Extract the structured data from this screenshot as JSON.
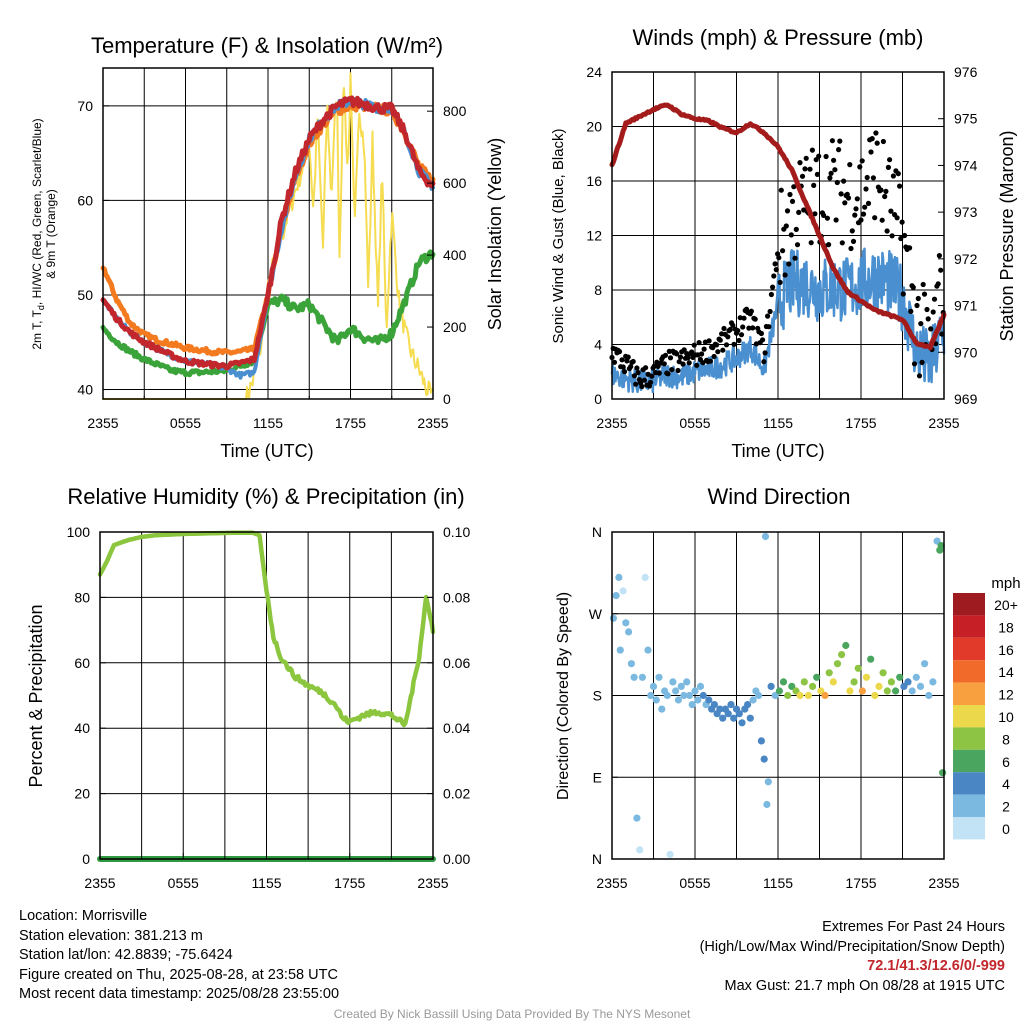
{
  "colors": {
    "red": "#c1272d",
    "blue": "#4a90d0",
    "green": "#3aa33a",
    "orange": "#f47a20",
    "yellow": "#f5dc50",
    "black": "#000000",
    "maroon": "#a31b1b",
    "rh_green": "#8cc63f",
    "precip_green": "#2f9a3f"
  },
  "chart_data": [
    {
      "type": "line",
      "title": "Temperature (F) & Insolation (W/m²)",
      "xlabel": "Time (UTC)",
      "ylabel": "2m T, Td, HI/WC (Red, Green, Scarlet/Blue) & 9m T (Orange)",
      "ylabel_line1": "2m T, T",
      "ylabel_sub": "d",
      "ylabel_line1_rest": ", HI/WC (Red, Green, Scarlet/Blue)",
      "ylabel_line2": "& 9m T (Orange)",
      "y2label": "Solar Insolation (Yellow)",
      "xticks": [
        "2355",
        "0555",
        "1155",
        "1755",
        "2355"
      ],
      "ylim": [
        39,
        74
      ],
      "yticks": [
        40,
        50,
        60,
        70
      ],
      "y2lim": [
        0,
        920
      ],
      "y2ticks": [
        0,
        200,
        400,
        600,
        800
      ],
      "grid": true,
      "x": [
        0,
        1,
        2,
        3,
        4,
        5,
        6,
        7,
        8,
        9,
        10,
        11,
        12,
        13,
        14,
        15,
        16,
        17,
        18,
        19,
        20,
        21,
        22,
        23,
        24
      ],
      "series": [
        {
          "name": "2m T",
          "color": "red",
          "values": [
            49.5,
            47.5,
            46,
            45,
            44.3,
            43.6,
            43,
            42.8,
            42.6,
            42.5,
            42.8,
            43.2,
            50,
            58,
            63,
            66.5,
            68.5,
            70,
            70.5,
            70.2,
            69.8,
            69.7,
            67,
            63,
            61.5
          ]
        },
        {
          "name": "Td",
          "color": "green",
          "values": [
            46.5,
            45,
            44,
            43.2,
            42.6,
            42,
            41.8,
            41.8,
            41.9,
            42,
            42.5,
            43,
            49,
            49.5,
            48.5,
            49,
            47,
            45,
            46.5,
            45.5,
            45,
            46,
            49.5,
            53.5,
            54.5
          ]
        },
        {
          "name": "HI/WC",
          "color": "blue",
          "values": [
            49.5,
            47.5,
            46,
            45,
            44.3,
            43.6,
            43,
            42.8,
            42.6,
            42.2,
            41.5,
            41.8,
            50,
            57,
            62.5,
            66.5,
            68.5,
            70,
            70.5,
            70.2,
            69.8,
            69.7,
            67,
            63,
            61.5
          ]
        },
        {
          "name": "9m T",
          "color": "orange",
          "values": [
            53,
            49.5,
            47,
            45.8,
            45.2,
            44.8,
            44.4,
            44.2,
            44,
            43.9,
            44,
            44.3,
            50,
            57,
            62.5,
            66,
            68,
            69.5,
            70,
            70,
            69.7,
            69.5,
            67,
            63.5,
            62
          ]
        }
      ],
      "insolation": {
        "name": "Solar Insolation",
        "color": "yellow",
        "x": [
          0,
          10.4,
          11,
          11.5,
          12,
          12.5,
          13,
          13.5,
          14,
          14.5,
          15,
          15.3,
          15.6,
          16,
          16.3,
          16.6,
          17,
          17.2,
          17.5,
          17.8,
          18,
          18.3,
          18.6,
          19,
          19.3,
          19.6,
          20,
          20.3,
          20.6,
          21,
          21.5,
          22,
          22.5,
          23,
          23.5,
          24
        ],
        "values": [
          0,
          0,
          60,
          150,
          300,
          400,
          450,
          520,
          580,
          640,
          720,
          520,
          780,
          420,
          820,
          560,
          880,
          400,
          900,
          620,
          880,
          460,
          820,
          700,
          300,
          720,
          250,
          650,
          180,
          520,
          280,
          180,
          120,
          80,
          30,
          0
        ]
      }
    },
    {
      "type": "scatter",
      "title": "Winds (mph) & Pressure (mb)",
      "xlabel": "Time (UTC)",
      "ylabel": "Sonic Wind & Gust (Blue, Black)",
      "y2label": "Station Pressure (Maroon)",
      "xticks": [
        "2355",
        "0555",
        "1155",
        "1755",
        "2355"
      ],
      "ylim": [
        0,
        24
      ],
      "yticks": [
        0,
        4,
        8,
        12,
        16,
        20,
        24
      ],
      "y2lim": [
        969,
        976
      ],
      "y2ticks": [
        969,
        970,
        971,
        972,
        973,
        974,
        975,
        976
      ],
      "grid": true,
      "x": [
        0,
        1,
        2,
        3,
        4,
        5,
        6,
        7,
        8,
        9,
        10,
        11,
        12,
        13,
        14,
        15,
        16,
        17,
        18,
        19,
        20,
        21,
        22,
        23,
        24
      ],
      "series": [
        {
          "name": "Sonic Wind",
          "color": "blue",
          "values": [
            1.8,
            1.5,
            1.2,
            1.3,
            1.8,
            1.6,
            2,
            2.2,
            2.5,
            3,
            3.8,
            2.2,
            7,
            8.5,
            8.5,
            8,
            8.2,
            8,
            8.5,
            9,
            8.5,
            7.5,
            3.5,
            2.5,
            5
          ]
        },
        {
          "name": "Gust",
          "color": "black",
          "values": [
            3.5,
            2.5,
            1.5,
            1.8,
            2.6,
            2.8,
            3.2,
            3.6,
            4.2,
            5,
            6,
            3.5,
            11,
            13.5,
            14.5,
            15,
            15.5,
            15,
            15,
            17,
            14.5,
            12,
            5.5,
            3.5,
            9
          ]
        }
      ],
      "pressure": {
        "name": "Station Pressure",
        "color": "maroon",
        "values": [
          974,
          974.9,
          975.05,
          975.2,
          975.3,
          975.1,
          975,
          974.95,
          974.8,
          974.7,
          974.9,
          974.7,
          974.4,
          973.9,
          973.2,
          972.5,
          971.8,
          971.3,
          971.1,
          970.9,
          970.8,
          970.7,
          970.2,
          970.1,
          970.8
        ]
      }
    },
    {
      "type": "line",
      "title": "Relative Humidity (%) & Precipitation (in)",
      "ylabel": "Percent & Precipitation",
      "xticks": [
        "2355",
        "0555",
        "1155",
        "1755",
        "2355"
      ],
      "ylim": [
        0,
        100
      ],
      "yticks": [
        0,
        20,
        40,
        60,
        80,
        100
      ],
      "y2lim": [
        0,
        0.1
      ],
      "y2ticks": [
        "0.00",
        "0.02",
        "0.04",
        "0.06",
        "0.08",
        "0.10"
      ],
      "grid": true,
      "x": [
        0,
        0.5,
        1,
        2,
        3,
        4,
        5,
        6,
        7,
        8,
        9,
        10,
        11,
        11.5,
        12,
        12.5,
        13,
        14,
        15,
        16,
        17,
        17.5,
        18,
        19,
        20,
        21,
        22,
        23,
        23.5,
        24
      ],
      "series": [
        {
          "name": "Relative Humidity",
          "color": "rh_green",
          "values": [
            87,
            91,
            96,
            97.5,
            98.5,
            99,
            99.2,
            99.4,
            99.5,
            99.6,
            99.7,
            99.8,
            99.8,
            99,
            82,
            68,
            62,
            56,
            53,
            51,
            47,
            43,
            42,
            44,
            45,
            44,
            41,
            62,
            80,
            70
          ]
        },
        {
          "name": "Precipitation",
          "color": "precip_green",
          "values": [
            0,
            0,
            0,
            0,
            0,
            0,
            0,
            0,
            0,
            0,
            0,
            0,
            0,
            0,
            0,
            0,
            0,
            0,
            0,
            0,
            0,
            0,
            0,
            0,
            0,
            0,
            0,
            0,
            0,
            0
          ]
        }
      ]
    },
    {
      "type": "scatter",
      "title": "Wind Direction",
      "ylabel": "Direction (Colored By Speed)",
      "xticks": [
        "2355",
        "0555",
        "1155",
        "1755",
        "2355"
      ],
      "yticks": [
        "N",
        "E",
        "S",
        "W",
        "N"
      ],
      "ylim": [
        0,
        360
      ],
      "grid": true,
      "legend": {
        "position": "right",
        "unit": "mph",
        "labels": [
          "20+",
          "18",
          "16",
          "14",
          "12",
          "10",
          "8",
          "6",
          "4",
          "2",
          "0"
        ],
        "colors": [
          "#9e1c1f",
          "#c62026",
          "#e13a2a",
          "#f26a2a",
          "#f8a040",
          "#ecd94b",
          "#8dc444",
          "#4aa65f",
          "#4a86c4",
          "#7cb9e0",
          "#c2e3f5"
        ]
      },
      "points": [
        {
          "t": 0.1,
          "dir": 265,
          "mph": 1.5
        },
        {
          "t": 0.3,
          "dir": 290,
          "mph": 1
        },
        {
          "t": 0.5,
          "dir": 310,
          "mph": 1
        },
        {
          "t": 0.6,
          "dir": 230,
          "mph": 1
        },
        {
          "t": 0.8,
          "dir": 295,
          "mph": 0.5
        },
        {
          "t": 1.0,
          "dir": 260,
          "mph": 1
        },
        {
          "t": 1.2,
          "dir": 250,
          "mph": 2
        },
        {
          "t": 1.4,
          "dir": 215,
          "mph": 1
        },
        {
          "t": 1.6,
          "dir": 200,
          "mph": 1.5
        },
        {
          "t": 1.8,
          "dir": 45,
          "mph": 1
        },
        {
          "t": 2.0,
          "dir": 10,
          "mph": 0.5
        },
        {
          "t": 2.2,
          "dir": 200,
          "mph": 1
        },
        {
          "t": 2.4,
          "dir": 310,
          "mph": 0.5
        },
        {
          "t": 2.6,
          "dir": 230,
          "mph": 1
        },
        {
          "t": 2.8,
          "dir": 180,
          "mph": 1
        },
        {
          "t": 3.0,
          "dir": 190,
          "mph": 1.5
        },
        {
          "t": 3.2,
          "dir": 175,
          "mph": 2
        },
        {
          "t": 3.4,
          "dir": 200,
          "mph": 1
        },
        {
          "t": 3.6,
          "dir": 165,
          "mph": 1.5
        },
        {
          "t": 3.8,
          "dir": 185,
          "mph": 2
        },
        {
          "t": 4.0,
          "dir": 180,
          "mph": 1
        },
        {
          "t": 4.2,
          "dir": 5,
          "mph": 0.5
        },
        {
          "t": 4.4,
          "dir": 195,
          "mph": 1.5
        },
        {
          "t": 4.6,
          "dir": 185,
          "mph": 2
        },
        {
          "t": 4.8,
          "dir": 175,
          "mph": 2.5
        },
        {
          "t": 5.0,
          "dir": 190,
          "mph": 2
        },
        {
          "t": 5.2,
          "dir": 180,
          "mph": 1.5
        },
        {
          "t": 5.4,
          "dir": 195,
          "mph": 1
        },
        {
          "t": 5.6,
          "dir": 180,
          "mph": 2
        },
        {
          "t": 5.8,
          "dir": 170,
          "mph": 2.5
        },
        {
          "t": 6.0,
          "dir": 185,
          "mph": 2
        },
        {
          "t": 6.2,
          "dir": 175,
          "mph": 2.5
        },
        {
          "t": 6.4,
          "dir": 190,
          "mph": 1.5
        },
        {
          "t": 6.6,
          "dir": 180,
          "mph": 3
        },
        {
          "t": 6.8,
          "dir": 170,
          "mph": 2.5
        },
        {
          "t": 7.0,
          "dir": 175,
          "mph": 3
        },
        {
          "t": 7.2,
          "dir": 165,
          "mph": 3
        },
        {
          "t": 7.4,
          "dir": 170,
          "mph": 3.5
        },
        {
          "t": 7.6,
          "dir": 160,
          "mph": 3
        },
        {
          "t": 7.8,
          "dir": 165,
          "mph": 3.5
        },
        {
          "t": 8.0,
          "dir": 155,
          "mph": 4
        },
        {
          "t": 8.2,
          "dir": 165,
          "mph": 3.5
        },
        {
          "t": 8.4,
          "dir": 160,
          "mph": 4
        },
        {
          "t": 8.6,
          "dir": 170,
          "mph": 3
        },
        {
          "t": 8.8,
          "dir": 155,
          "mph": 4
        },
        {
          "t": 9.0,
          "dir": 165,
          "mph": 3.5
        },
        {
          "t": 9.2,
          "dir": 160,
          "mph": 4
        },
        {
          "t": 9.4,
          "dir": 150,
          "mph": 4.5
        },
        {
          "t": 9.6,
          "dir": 165,
          "mph": 4
        },
        {
          "t": 9.8,
          "dir": 170,
          "mph": 3
        },
        {
          "t": 10.0,
          "dir": 155,
          "mph": 4
        },
        {
          "t": 10.2,
          "dir": 175,
          "mph": 2.5
        },
        {
          "t": 10.4,
          "dir": 185,
          "mph": 2
        },
        {
          "t": 10.6,
          "dir": 180,
          "mph": 2
        },
        {
          "t": 10.8,
          "dir": 130,
          "mph": 3
        },
        {
          "t": 11.0,
          "dir": 110,
          "mph": 4
        },
        {
          "t": 11.1,
          "dir": 355,
          "mph": 1
        },
        {
          "t": 11.2,
          "dir": 60,
          "mph": 2
        },
        {
          "t": 11.3,
          "dir": 85,
          "mph": 2
        },
        {
          "t": 11.5,
          "dir": 190,
          "mph": 3
        },
        {
          "t": 11.8,
          "dir": 180,
          "mph": 2
        },
        {
          "t": 12.1,
          "dir": 185,
          "mph": 5
        },
        {
          "t": 12.4,
          "dir": 195,
          "mph": 6
        },
        {
          "t": 12.7,
          "dir": 180,
          "mph": 7
        },
        {
          "t": 13.0,
          "dir": 190,
          "mph": 6.5
        },
        {
          "t": 13.3,
          "dir": 185,
          "mph": 8
        },
        {
          "t": 13.6,
          "dir": 180,
          "mph": 9
        },
        {
          "t": 13.9,
          "dir": 195,
          "mph": 7
        },
        {
          "t": 14.2,
          "dir": 180,
          "mph": 10
        },
        {
          "t": 14.5,
          "dir": 190,
          "mph": 8
        },
        {
          "t": 14.8,
          "dir": 200,
          "mph": 6
        },
        {
          "t": 15.1,
          "dir": 185,
          "mph": 9.5
        },
        {
          "t": 15.4,
          "dir": 180,
          "mph": 11
        },
        {
          "t": 15.7,
          "dir": 205,
          "mph": 7
        },
        {
          "t": 16.0,
          "dir": 195,
          "mph": 9
        },
        {
          "t": 16.3,
          "dir": 215,
          "mph": 7.5
        },
        {
          "t": 16.6,
          "dir": 225,
          "mph": 7
        },
        {
          "t": 16.9,
          "dir": 235,
          "mph": 6
        },
        {
          "t": 17.2,
          "dir": 185,
          "mph": 10
        },
        {
          "t": 17.5,
          "dir": 195,
          "mph": 8
        },
        {
          "t": 17.8,
          "dir": 210,
          "mph": 8.5
        },
        {
          "t": 18.1,
          "dir": 185,
          "mph": 11
        },
        {
          "t": 18.4,
          "dir": 200,
          "mph": 9
        },
        {
          "t": 18.7,
          "dir": 220,
          "mph": 6
        },
        {
          "t": 19.0,
          "dir": 180,
          "mph": 10
        },
        {
          "t": 19.3,
          "dir": 190,
          "mph": 9
        },
        {
          "t": 19.6,
          "dir": 205,
          "mph": 7
        },
        {
          "t": 19.9,
          "dir": 185,
          "mph": 8
        },
        {
          "t": 20.2,
          "dir": 195,
          "mph": 7.5
        },
        {
          "t": 20.5,
          "dir": 185,
          "mph": 6
        },
        {
          "t": 20.8,
          "dir": 200,
          "mph": 5
        },
        {
          "t": 21.1,
          "dir": 190,
          "mph": 4
        },
        {
          "t": 21.4,
          "dir": 195,
          "mph": 3
        },
        {
          "t": 21.7,
          "dir": 185,
          "mph": 2
        },
        {
          "t": 22.0,
          "dir": 200,
          "mph": 2.5
        },
        {
          "t": 22.3,
          "dir": 190,
          "mph": 1.5
        },
        {
          "t": 22.6,
          "dir": 215,
          "mph": 1
        },
        {
          "t": 22.9,
          "dir": 180,
          "mph": 2
        },
        {
          "t": 23.2,
          "dir": 195,
          "mph": 1
        },
        {
          "t": 23.5,
          "dir": 350,
          "mph": 1
        },
        {
          "t": 23.7,
          "dir": 340,
          "mph": 6
        },
        {
          "t": 23.8,
          "dir": 345,
          "mph": 6
        },
        {
          "t": 23.9,
          "dir": 95,
          "mph": 5
        }
      ]
    }
  ],
  "info": {
    "location": "Location: Morrisville",
    "elevation": "Station elevation: 381.213 m",
    "latlon": "Station lat/lon: 42.8839; -75.6424",
    "created": "Figure created on Thu, 2025-08-28, at 23:58 UTC",
    "recent": "Most recent data timestamp: 2025/08/28 23:55:00"
  },
  "extremes": {
    "title": "Extremes For Past 24 Hours",
    "subtitle": "(High/Low/Max Wind/Precipitation/Snow Depth)",
    "values": "72.1/41.3/12.6/0/-999",
    "gust": "Max Gust: 21.7 mph On 08/28 at 1915 UTC"
  },
  "credit": "Created By Nick Bassill Using Data Provided By The NYS Mesonet"
}
